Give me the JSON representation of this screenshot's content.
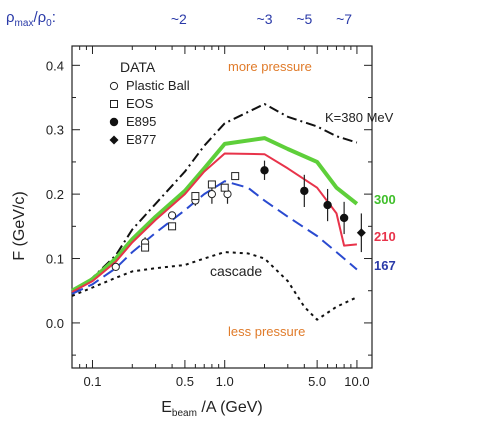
{
  "chart_data": {
    "type": "line",
    "xlabel": "E",
    "xlabel_sub": "beam",
    "xlabel_rest": " /A (GeV)",
    "ylabel": "F (GeV/c)",
    "x_scale": "log",
    "xlim": [
      0.07,
      13
    ],
    "ylim": [
      -0.07,
      0.43
    ],
    "x_ticks": [
      {
        "v": 0.1,
        "label": "0.1"
      },
      {
        "v": 0.5,
        "label": "0.5"
      },
      {
        "v": 1.0,
        "label": "1.0"
      },
      {
        "v": 5.0,
        "label": "5.0"
      },
      {
        "v": 10.0,
        "label": "10.0"
      }
    ],
    "x_minor_ticks": [
      0.08,
      0.09,
      0.2,
      0.3,
      0.4,
      0.6,
      0.7,
      0.8,
      0.9,
      2,
      3,
      4,
      6,
      7,
      8,
      9
    ],
    "y_ticks": [
      {
        "v": 0.0,
        "label": "0.0"
      },
      {
        "v": 0.1,
        "label": "0.1"
      },
      {
        "v": 0.2,
        "label": "0.2"
      },
      {
        "v": 0.3,
        "label": "0.3"
      },
      {
        "v": 0.4,
        "label": "0.4"
      }
    ],
    "top_axis": {
      "label_main": "ρ",
      "label_sub1": "max",
      "label_mid": "/ρ",
      "label_sub2": "0",
      "label_end": ":",
      "ticks": [
        {
          "x": 0.45,
          "label": "~2"
        },
        {
          "x": 2.0,
          "label": "~3"
        },
        {
          "x": 4.0,
          "label": "~5"
        },
        {
          "x": 8.0,
          "label": "~7"
        }
      ],
      "color": "#2a3aa8"
    },
    "legend_title": "DATA",
    "legend": [
      {
        "name": "Plastic Ball",
        "marker": "open-circle"
      },
      {
        "name": "EOS",
        "marker": "open-square"
      },
      {
        "name": "E895",
        "marker": "filled-circle"
      },
      {
        "name": "E877",
        "marker": "filled-diamond"
      }
    ],
    "annotations": {
      "more_pressure": "more pressure",
      "less_pressure": "less pressure",
      "cascade": "cascade",
      "k380": "K=380 MeV",
      "label_300": "300",
      "label_210": "210",
      "label_167": "167",
      "orange": "#e07b2a"
    },
    "curves": [
      {
        "id": "k380",
        "style": "dashdot",
        "color": "#111111",
        "x": [
          0.07,
          0.1,
          0.15,
          0.2,
          0.3,
          0.5,
          0.7,
          1.0,
          2.0,
          3.0,
          5.0,
          7.0,
          10.0
        ],
        "y": [
          0.045,
          0.07,
          0.105,
          0.145,
          0.185,
          0.235,
          0.275,
          0.31,
          0.34,
          0.32,
          0.305,
          0.29,
          0.28
        ]
      },
      {
        "id": "k300",
        "style": "solid",
        "color": "#5ecf3a",
        "width": 4,
        "x": [
          0.07,
          0.1,
          0.15,
          0.2,
          0.3,
          0.5,
          0.7,
          1.0,
          2.0,
          3.0,
          5.0,
          7.0,
          10.0
        ],
        "y": [
          0.05,
          0.068,
          0.1,
          0.13,
          0.165,
          0.205,
          0.24,
          0.278,
          0.287,
          0.27,
          0.25,
          0.21,
          0.185
        ]
      },
      {
        "id": "k210",
        "style": "solid",
        "color": "#e8334a",
        "width": 2,
        "x": [
          0.07,
          0.1,
          0.15,
          0.2,
          0.3,
          0.5,
          0.7,
          1.0,
          2.0,
          3.0,
          5.0,
          7.0,
          8.0,
          10.0
        ],
        "y": [
          0.048,
          0.065,
          0.095,
          0.125,
          0.16,
          0.2,
          0.235,
          0.263,
          0.262,
          0.24,
          0.21,
          0.17,
          0.12,
          0.122
        ]
      },
      {
        "id": "k167",
        "style": "dashed",
        "color": "#2a4ad0",
        "width": 2,
        "x": [
          0.07,
          0.1,
          0.15,
          0.2,
          0.3,
          0.5,
          0.7,
          1.0,
          1.5,
          2.0,
          3.0,
          5.0,
          7.0,
          10.0
        ],
        "y": [
          0.045,
          0.06,
          0.085,
          0.11,
          0.14,
          0.175,
          0.2,
          0.22,
          0.21,
          0.19,
          0.165,
          0.135,
          0.11,
          0.083
        ]
      },
      {
        "id": "cascade",
        "style": "dotted",
        "color": "#111111",
        "width": 2,
        "x": [
          0.07,
          0.1,
          0.15,
          0.2,
          0.3,
          0.5,
          0.7,
          1.0,
          1.5,
          2.0,
          3.0,
          4.0,
          5.0,
          7.0,
          10.0
        ],
        "y": [
          0.042,
          0.055,
          0.07,
          0.08,
          0.085,
          0.09,
          0.1,
          0.11,
          0.108,
          0.1,
          0.065,
          0.025,
          0.005,
          0.025,
          0.04
        ]
      }
    ],
    "data_points": [
      {
        "series": "Plastic Ball",
        "x": 0.15,
        "y": 0.087,
        "err": 0.0
      },
      {
        "series": "Plastic Ball",
        "x": 0.25,
        "y": 0.125,
        "err": 0.008
      },
      {
        "series": "Plastic Ball",
        "x": 0.4,
        "y": 0.167,
        "err": 0.0
      },
      {
        "series": "Plastic Ball",
        "x": 0.6,
        "y": 0.19,
        "err": 0.008
      },
      {
        "series": "Plastic Ball",
        "x": 0.8,
        "y": 0.2,
        "err": 0.015
      },
      {
        "series": "Plastic Ball",
        "x": 1.05,
        "y": 0.2,
        "err": 0.015
      },
      {
        "series": "EOS",
        "x": 0.25,
        "y": 0.117,
        "err": 0.0
      },
      {
        "series": "EOS",
        "x": 0.4,
        "y": 0.15,
        "err": 0.0
      },
      {
        "series": "EOS",
        "x": 0.6,
        "y": 0.197,
        "err": 0.0
      },
      {
        "series": "EOS",
        "x": 0.8,
        "y": 0.215,
        "err": 0.0
      },
      {
        "series": "EOS",
        "x": 1.0,
        "y": 0.21,
        "err": 0.0
      },
      {
        "series": "EOS",
        "x": 1.2,
        "y": 0.228,
        "err": 0.0
      },
      {
        "series": "E895",
        "x": 2.0,
        "y": 0.237,
        "err": 0.015
      },
      {
        "series": "E895",
        "x": 4.0,
        "y": 0.205,
        "err": 0.025
      },
      {
        "series": "E895",
        "x": 6.0,
        "y": 0.183,
        "err": 0.025
      },
      {
        "series": "E895",
        "x": 8.0,
        "y": 0.163,
        "err": 0.025
      },
      {
        "series": "E877",
        "x": 10.8,
        "y": 0.14,
        "err": 0.03
      }
    ]
  }
}
